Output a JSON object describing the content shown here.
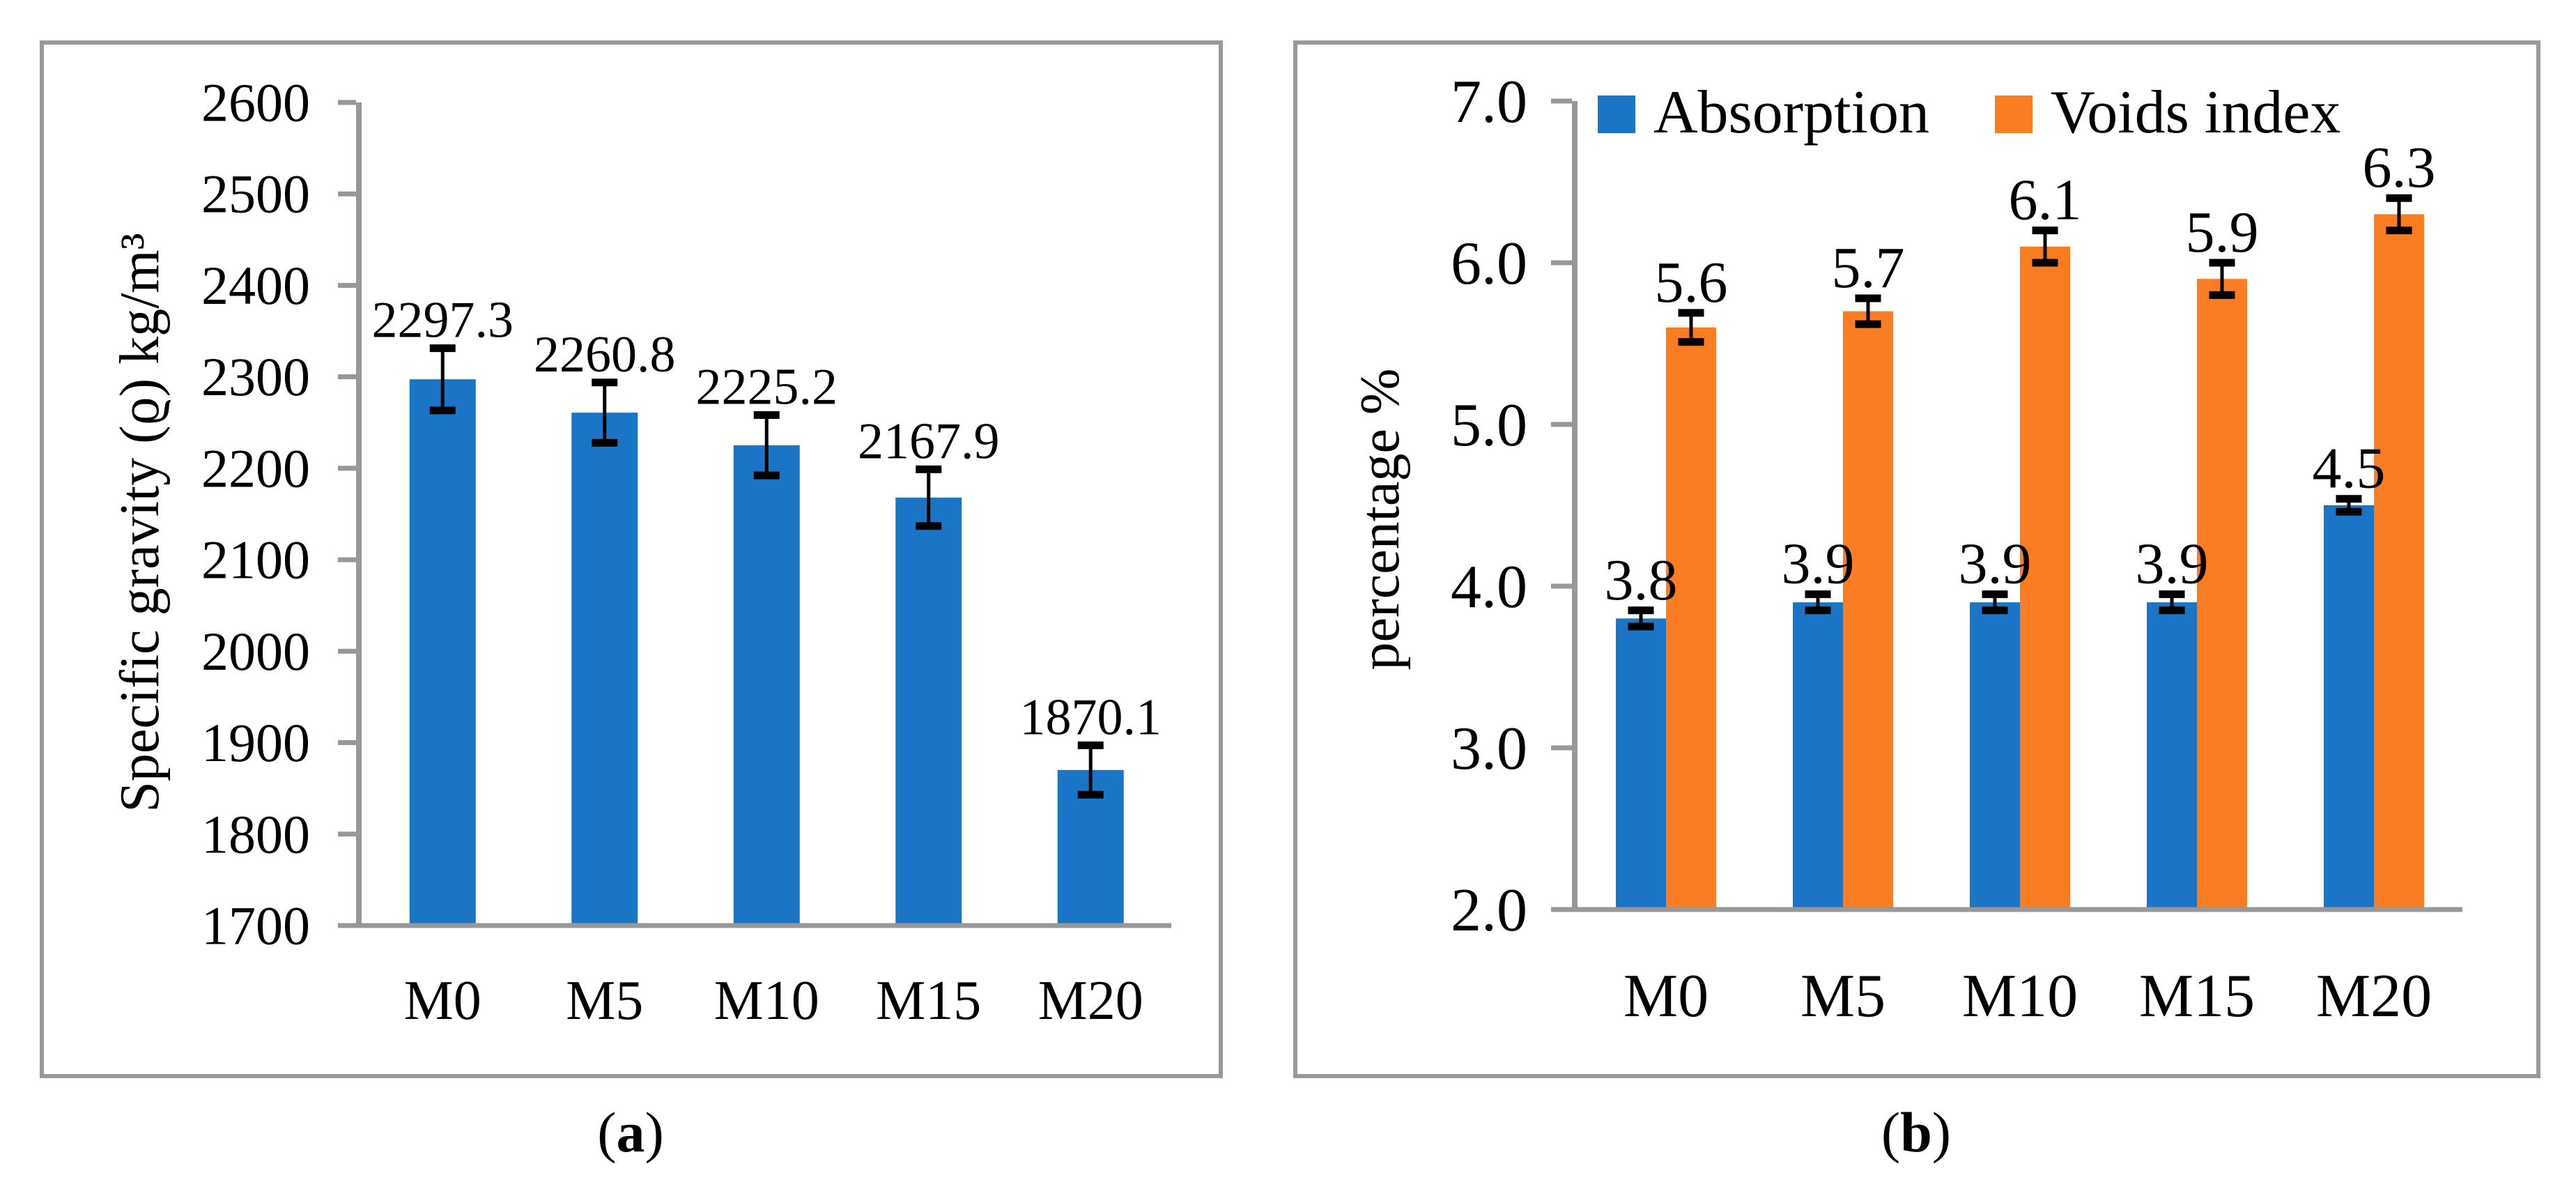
{
  "figure": {
    "captions": {
      "a": {
        "open": "(",
        "letter": "a",
        "close": ")"
      },
      "b": {
        "open": "(",
        "letter": "b",
        "close": ")"
      }
    }
  },
  "colors": {
    "bar_blue": "#1B75C6",
    "bar_orange": "#FB7D23",
    "axis_gray": "#979797",
    "panel_border": "#999999",
    "error_black": "#000000",
    "text_black": "#000000"
  },
  "chart_data": [
    {
      "type": "bar",
      "panel": "a",
      "title": "",
      "categories": [
        "M0",
        "M5",
        "M10",
        "M15",
        "M20"
      ],
      "series": [
        {
          "name": "Specific gravity",
          "color_key": "bar_blue",
          "values": [
            2297.3,
            2260.8,
            2225.2,
            2167.9,
            1870.1
          ],
          "errors": [
            34,
            33,
            33,
            31,
            27
          ],
          "value_labels": [
            "2297.3",
            "2260.8",
            "2225.2",
            "2167.9",
            "1870.1"
          ]
        }
      ],
      "xlabel": "",
      "ylabel": "Specific gravity (ϱ) kg/m³",
      "ylim": [
        1700,
        2600
      ],
      "yticks": [
        "1700",
        "1800",
        "1900",
        "2000",
        "2100",
        "2200",
        "2300",
        "2400",
        "2500",
        "2600"
      ],
      "grid": false,
      "legend": null
    },
    {
      "type": "bar",
      "panel": "b",
      "title": "",
      "categories": [
        "M0",
        "M5",
        "M10",
        "M15",
        "M20"
      ],
      "series": [
        {
          "name": "Absorption",
          "color_key": "bar_blue",
          "values": [
            3.8,
            3.9,
            3.9,
            3.9,
            4.5
          ],
          "errors": [
            0.05,
            0.05,
            0.05,
            0.05,
            0.04
          ],
          "value_labels": [
            "3.8",
            "3.9",
            "3.9",
            "3.9",
            "4.5"
          ]
        },
        {
          "name": "Voids index",
          "color_key": "bar_orange",
          "values": [
            5.6,
            5.7,
            6.1,
            5.9,
            6.3
          ],
          "errors": [
            0.09,
            0.08,
            0.1,
            0.1,
            0.1
          ],
          "value_labels": [
            "5.6",
            "5.7",
            "6.1",
            "5.9",
            "6.3"
          ]
        }
      ],
      "xlabel": "",
      "ylabel": "percentage %",
      "ylim": [
        2.0,
        7.0
      ],
      "yticks": [
        "2.0",
        "3.0",
        "4.0",
        "5.0",
        "6.0",
        "7.0"
      ],
      "grid": false,
      "legend": {
        "position": "top",
        "items": [
          "Absorption",
          "Voids index"
        ]
      }
    }
  ]
}
